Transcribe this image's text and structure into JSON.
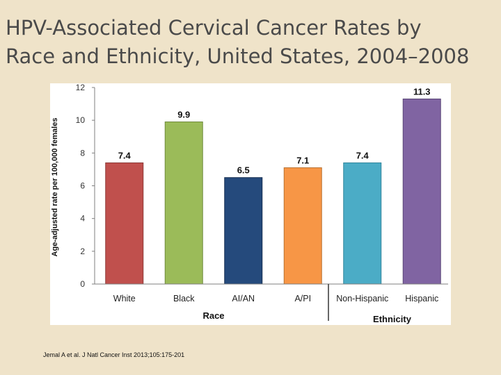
{
  "slide": {
    "title_line1": "HPV-Associated Cervical Cancer Rates by",
    "title_line2": "Race and Ethnicity, United States, 2004–2008",
    "citation": "Jemal A et al. J Natl Cancer Inst 2013;105:175-201"
  },
  "chart_data": {
    "type": "bar",
    "title": "",
    "categories": [
      "White",
      "Black",
      "AI/AN",
      "A/PI",
      "Non-Hispanic",
      "Hispanic"
    ],
    "values": [
      7.4,
      9.9,
      6.5,
      7.1,
      7.4,
      11.3
    ],
    "data_labels": [
      "7.4",
      "9.9",
      "6.5",
      "7.1",
      "7.4",
      "11.3"
    ],
    "colors": [
      "#c0504d",
      "#9bbb59",
      "#254a7c",
      "#f79646",
      "#4bacc6",
      "#8064a2"
    ],
    "border_colors": [
      "#8c3836",
      "#6f8a3c",
      "#162e50",
      "#b8702f",
      "#31859c",
      "#5a4777"
    ],
    "ylabel": "Age-adjusted rate per 100,000 females",
    "ylim": [
      0,
      12
    ],
    "yticks": [
      "0",
      "2",
      "4",
      "6",
      "8",
      "10",
      "12"
    ],
    "groups": [
      {
        "label": "Race",
        "categories": [
          "White",
          "Black",
          "AI/AN",
          "A/PI"
        ]
      },
      {
        "label": "Ethnicity",
        "categories": [
          "Non-Hispanic",
          "Hispanic"
        ]
      }
    ],
    "grid": false,
    "legend": "none"
  }
}
